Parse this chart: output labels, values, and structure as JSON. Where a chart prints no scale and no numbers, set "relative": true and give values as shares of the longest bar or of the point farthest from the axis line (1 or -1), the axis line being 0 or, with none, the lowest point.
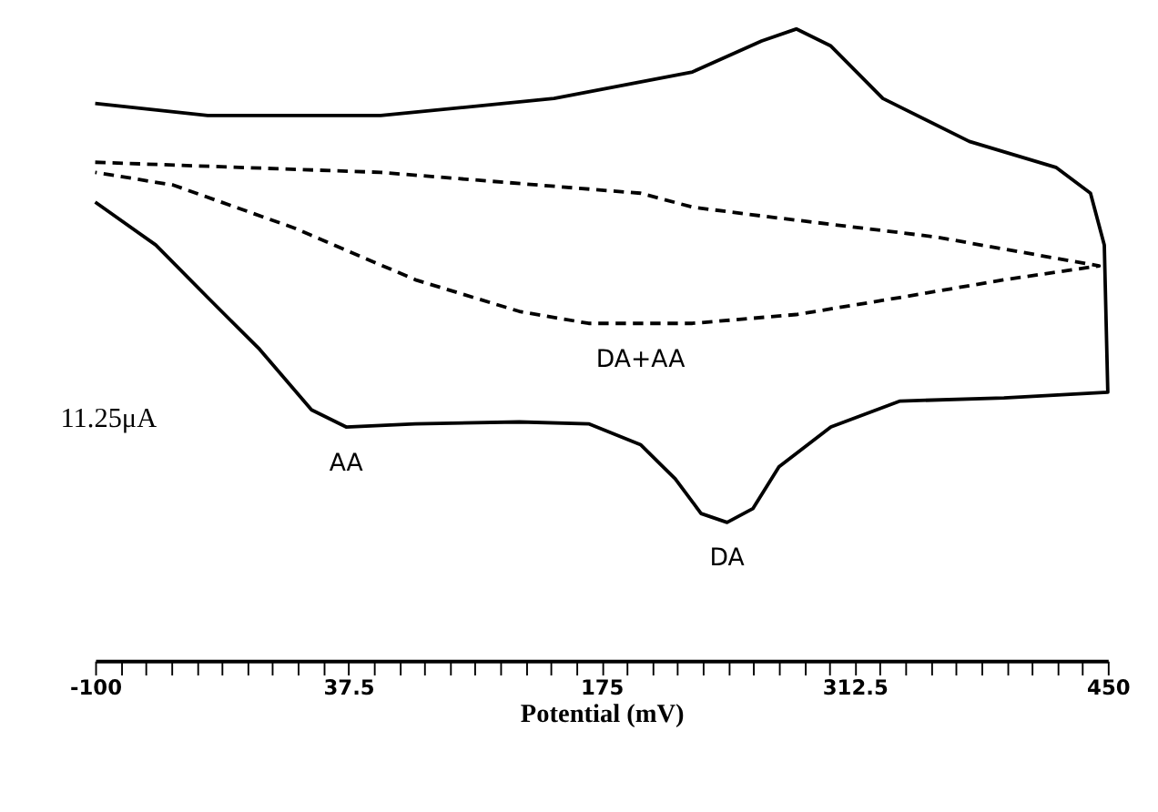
{
  "chart_data": {
    "type": "line",
    "relative": true,
    "xlabel": "Potential (mV)",
    "xlim": [
      -100,
      450
    ],
    "xticks": [
      -100,
      {
        "value": -86.25,
        "label": null
      },
      {
        "value": -72.5,
        "label": null
      },
      {
        "value": -58.75,
        "label": null
      },
      {
        "value": -45,
        "label": null
      },
      {
        "value": -31.25,
        "label": null
      },
      {
        "value": -17.5,
        "label": null
      },
      {
        "value": -3.75,
        "label": null
      },
      {
        "value": 10,
        "label": null
      },
      {
        "value": 23.75,
        "label": null
      },
      37.5,
      {
        "value": 51.25,
        "label": null
      },
      {
        "value": 65,
        "label": null
      },
      {
        "value": 78.75,
        "label": null
      },
      {
        "value": 92.5,
        "label": null
      },
      {
        "value": 106.25,
        "label": null
      },
      {
        "value": 120,
        "label": null
      },
      {
        "value": 133.75,
        "label": null
      },
      {
        "value": 147.5,
        "label": null
      },
      {
        "value": 161.25,
        "label": null
      },
      175,
      {
        "value": 188.75,
        "label": null
      },
      {
        "value": 202.5,
        "label": null
      },
      {
        "value": 216.25,
        "label": null
      },
      {
        "value": 230,
        "label": null
      },
      {
        "value": 243.75,
        "label": null
      },
      {
        "value": 257.5,
        "label": null
      },
      {
        "value": 271.25,
        "label": null
      },
      {
        "value": 285,
        "label": null
      },
      {
        "value": 298.75,
        "label": null
      },
      312.5,
      {
        "value": 326.25,
        "label": null
      },
      {
        "value": 340,
        "label": null
      },
      {
        "value": 353.75,
        "label": null
      },
      {
        "value": 367.5,
        "label": null
      },
      {
        "value": 381.25,
        "label": null
      },
      {
        "value": 395,
        "label": null
      },
      {
        "value": 408.75,
        "label": null
      },
      {
        "value": 422.5,
        "label": null
      },
      {
        "value": 436.25,
        "label": null
      },
      450
    ],
    "tick_labels": "x",
    "grid": false,
    "legend": false,
    "series": [
      {
        "color": "#000000",
        "line_style": "solid",
        "x": [
          -100,
          -38.9,
          55.1,
          149.2,
          224.4,
          262.0,
          280.8,
          299.6,
          327.8,
          374.8,
          421.8,
          440.6,
          448.1,
          450,
          393.6,
          337.2,
          299.6,
          271.4,
          257.3,
          243.2,
          229.1,
          215.0,
          196.2,
          168.0,
          130.3,
          73.9,
          36.3,
          17.5,
          -10.7,
          -38.9,
          -67.1,
          -100
        ],
        "values": [
          0.882,
          0.863,
          0.863,
          0.89,
          0.932,
          0.981,
          1.0,
          0.973,
          0.89,
          0.822,
          0.781,
          0.74,
          0.658,
          0.425,
          0.416,
          0.411,
          0.37,
          0.307,
          0.241,
          0.219,
          0.233,
          0.288,
          0.342,
          0.375,
          0.378,
          0.375,
          0.37,
          0.397,
          0.493,
          0.575,
          0.658,
          0.726
        ]
      },
      {
        "color": "#000000",
        "line_style": "dashed",
        "x": [
          -100,
          55.1,
          196.2,
          224.4,
          262.0,
          356.0,
          445.3,
          393.6,
          337.2,
          280.8,
          224.4,
          168.0,
          130.3,
          73.9,
          8.1,
          -57.7,
          -100
        ],
        "values": [
          0.789,
          0.773,
          0.74,
          0.718,
          0.704,
          0.671,
          0.625,
          0.603,
          0.575,
          0.548,
          0.534,
          0.534,
          0.553,
          0.603,
          0.685,
          0.753,
          0.773
        ]
      }
    ],
    "annotations": [
      {
        "text": "DA+AA",
        "x": 196.2,
        "y": 0.534
      },
      {
        "text": "AA",
        "x": 36.3,
        "y": 0.37
      },
      {
        "text": "DA",
        "x": 243.2,
        "y": 0.219
      },
      "11.25μA"
    ]
  }
}
